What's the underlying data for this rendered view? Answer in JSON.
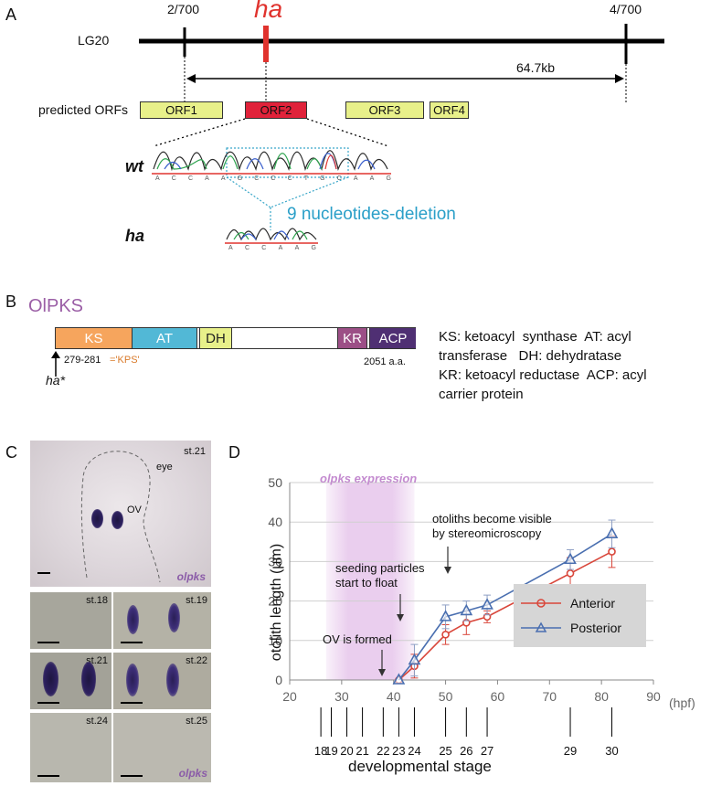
{
  "panelA": {
    "label": "A",
    "lg_label": "LG20",
    "marker_left": "2/700",
    "marker_right": "4/700",
    "gene_label": "ha",
    "distance": "64.7kb",
    "orfs_label": "predicted ORFs",
    "orfs": [
      "ORF1",
      "ORF2",
      "ORF3",
      "ORF4"
    ],
    "wt_label": "wt",
    "ha_label": "ha",
    "deletion_label": "9 nucleotides-deletion",
    "wt_bases": [
      "A",
      "C",
      "C",
      "A",
      "A",
      "G",
      "C",
      "C",
      "C",
      "T",
      "G",
      "C",
      "A",
      "A",
      "G"
    ],
    "ha_bases": [
      "A",
      "C",
      "C",
      "A",
      "A",
      "G"
    ]
  },
  "panelB": {
    "label": "B",
    "protein_name": "OlPKS",
    "domains": [
      "KS",
      "AT",
      "DH",
      "KR",
      "ACP"
    ],
    "site_label": "279-281",
    "site_motif": "='KPS'",
    "mutant_label": "ha*",
    "length_label": "2051 a.a.",
    "legend_lines": [
      "KS: ketoacyl  synthase  AT: acyl",
      "transferase   DH: dehydratase",
      "KR: ketoacyl reductase  ACP: acyl",
      "carrier protein"
    ],
    "colors": {
      "KS": "#f6a55d",
      "AT": "#52b8d6",
      "DH": "#e8f08a",
      "KR": "#9c4f86",
      "ACP": "#4f2f73"
    }
  },
  "panelC": {
    "label": "C",
    "main_stage": "st.21",
    "eye_label": "eye",
    "ov_label": "OV",
    "gene_label": "olpks",
    "stages": [
      "st.18",
      "st.19",
      "st.21",
      "st.22",
      "st.24",
      "st.25"
    ],
    "gene_label_small": "olpks"
  },
  "panelD": {
    "label": "D",
    "expression_label": "olpks expression",
    "annot_visible_1": "otoliths become visible",
    "annot_visible_2": "by stereomicroscopy",
    "annot_float_1": "seeding particles",
    "annot_float_2": "start to float",
    "annot_ov": "OV is formed",
    "unit_label": "(hpf)",
    "stage_axis_label": "developmental stage",
    "stage_ticks": [
      {
        "stage": "18",
        "hpf": 26
      },
      {
        "stage": "19",
        "hpf": 28
      },
      {
        "stage": "20",
        "hpf": 31
      },
      {
        "stage": "21",
        "hpf": 34
      },
      {
        "stage": "22",
        "hpf": 38
      },
      {
        "stage": "23",
        "hpf": 41
      },
      {
        "stage": "24",
        "hpf": 44
      },
      {
        "stage": "25",
        "hpf": 50
      },
      {
        "stage": "26",
        "hpf": 54
      },
      {
        "stage": "27",
        "hpf": 58
      },
      {
        "stage": "29",
        "hpf": 74
      },
      {
        "stage": "30",
        "hpf": 82
      }
    ]
  },
  "chart_data": {
    "type": "line",
    "title": "",
    "xlabel": "",
    "ylabel": "otolith length (μm)",
    "xlim": [
      20,
      90
    ],
    "ylim": [
      0,
      50
    ],
    "xticks": [
      20,
      30,
      40,
      50,
      60,
      70,
      80,
      90
    ],
    "yticks": [
      0,
      10,
      20,
      30,
      40,
      50
    ],
    "grid": true,
    "legend_position": "bottom-right",
    "shaded_region": {
      "x_start": 27,
      "x_end": 44,
      "label": "olpks expression",
      "color": "#d9a6e0"
    },
    "series": [
      {
        "name": "Anterior",
        "color": "#d9463a",
        "marker": "circle",
        "x": [
          41,
          44,
          50,
          54,
          58,
          74,
          82
        ],
        "y": [
          0,
          3.5,
          11.5,
          14.5,
          16,
          27,
          32.5
        ],
        "err": [
          0,
          3,
          2.5,
          3,
          1.5,
          4,
          4
        ]
      },
      {
        "name": "Posterior",
        "color": "#4a6fb0",
        "marker": "triangle",
        "x": [
          41,
          44,
          50,
          54,
          58,
          74,
          82
        ],
        "y": [
          0,
          5,
          16,
          17.5,
          19,
          30.5,
          37
        ],
        "err": [
          0,
          4,
          3,
          2.5,
          2.5,
          2.5,
          3.5
        ]
      }
    ]
  }
}
